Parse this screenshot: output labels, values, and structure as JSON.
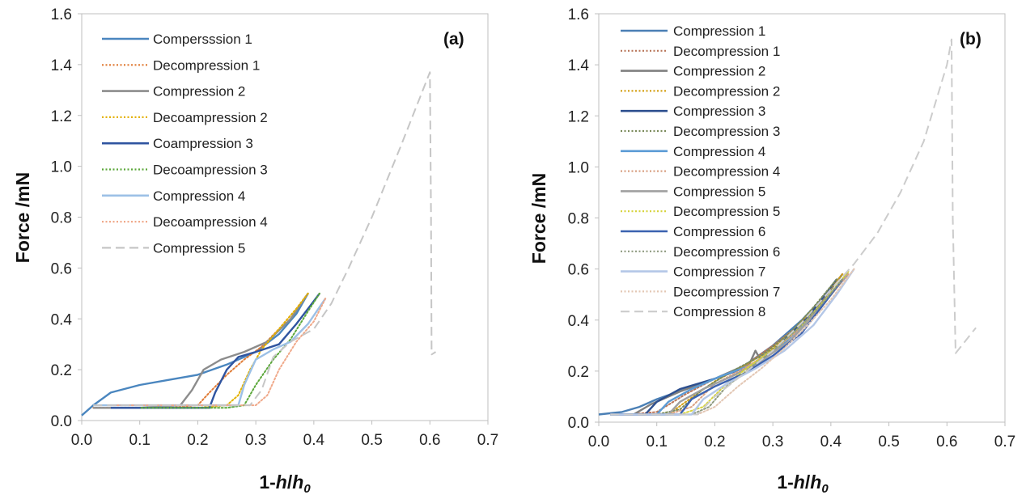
{
  "chart_data": [
    {
      "type": "line",
      "panel_label": "(a)",
      "xlabel_main": "1-",
      "xlabel_var": "h",
      "xlabel_sep": "/",
      "xlabel_var2": "h",
      "xlabel_sub": "0",
      "ylabel": "Force /mN",
      "xlim": [
        0,
        0.7
      ],
      "ylim": [
        0,
        1.6
      ],
      "xticks": [
        "0.0",
        "0.1",
        "0.2",
        "0.3",
        "0.4",
        "0.5",
        "0.6",
        "0.7"
      ],
      "yticks": [
        "0.0",
        "0.2",
        "0.4",
        "0.6",
        "0.8",
        "1.0",
        "1.2",
        "1.4",
        "1.6"
      ],
      "legend_placement": "top-left",
      "grid": false,
      "series": [
        {
          "name": "Compersssion 1",
          "color": "#4a86bf",
          "style": "solid",
          "x": [
            0.0,
            0.02,
            0.05,
            0.1,
            0.15,
            0.2,
            0.25,
            0.3,
            0.34,
            0.37,
            0.39
          ],
          "y": [
            0.02,
            0.06,
            0.11,
            0.14,
            0.16,
            0.18,
            0.22,
            0.27,
            0.34,
            0.42,
            0.5
          ]
        },
        {
          "name": "Decompression 1",
          "color": "#e07b35",
          "style": "dotted",
          "x": [
            0.39,
            0.37,
            0.34,
            0.31,
            0.28,
            0.25,
            0.22,
            0.2,
            0.15,
            0.1,
            0.05,
            0.02
          ],
          "y": [
            0.5,
            0.44,
            0.36,
            0.29,
            0.24,
            0.18,
            0.11,
            0.06,
            0.05,
            0.05,
            0.05,
            0.05
          ]
        },
        {
          "name": "Compression 2",
          "color": "#8c8c8c",
          "style": "solid",
          "x": [
            0.02,
            0.1,
            0.17,
            0.19,
            0.21,
            0.24,
            0.28,
            0.32,
            0.36,
            0.39
          ],
          "y": [
            0.05,
            0.05,
            0.06,
            0.12,
            0.2,
            0.24,
            0.27,
            0.31,
            0.4,
            0.5
          ]
        },
        {
          "name": "Decoampression 2",
          "color": "#e3b100",
          "style": "dotted",
          "x": [
            0.39,
            0.37,
            0.34,
            0.31,
            0.29,
            0.27,
            0.25,
            0.2,
            0.1
          ],
          "y": [
            0.5,
            0.44,
            0.36,
            0.28,
            0.2,
            0.1,
            0.06,
            0.05,
            0.05
          ]
        },
        {
          "name": "Coampression 3",
          "color": "#2f54a0",
          "style": "solid",
          "x": [
            0.05,
            0.15,
            0.22,
            0.23,
            0.25,
            0.27,
            0.3,
            0.34,
            0.37,
            0.39,
            0.41
          ],
          "y": [
            0.05,
            0.05,
            0.05,
            0.11,
            0.2,
            0.25,
            0.27,
            0.3,
            0.38,
            0.44,
            0.5
          ]
        },
        {
          "name": "Decoampression 3",
          "color": "#5ca83b",
          "style": "dotted",
          "x": [
            0.41,
            0.39,
            0.36,
            0.33,
            0.3,
            0.28,
            0.25,
            0.2,
            0.1
          ],
          "y": [
            0.5,
            0.43,
            0.32,
            0.24,
            0.14,
            0.06,
            0.05,
            0.05,
            0.05
          ]
        },
        {
          "name": "Compression 4",
          "color": "#9cc0e6",
          "style": "solid",
          "x": [
            0.02,
            0.1,
            0.2,
            0.27,
            0.28,
            0.3,
            0.33,
            0.36,
            0.39,
            0.42
          ],
          "y": [
            0.06,
            0.06,
            0.06,
            0.06,
            0.14,
            0.24,
            0.28,
            0.31,
            0.38,
            0.48
          ]
        },
        {
          "name": "Decoampression 4",
          "color": "#f0a98a",
          "style": "dotted",
          "x": [
            0.42,
            0.4,
            0.37,
            0.34,
            0.32,
            0.3,
            0.25,
            0.15,
            0.05
          ],
          "y": [
            0.48,
            0.39,
            0.31,
            0.2,
            0.1,
            0.06,
            0.06,
            0.06,
            0.06
          ]
        },
        {
          "name": "Compression 5",
          "color": "#c6c6c6",
          "style": "dashed",
          "x": [
            0.02,
            0.1,
            0.2,
            0.29,
            0.31,
            0.33,
            0.36,
            0.4,
            0.43,
            0.46,
            0.5,
            0.55,
            0.6,
            0.602,
            0.603,
            0.61
          ],
          "y": [
            0.06,
            0.06,
            0.06,
            0.06,
            0.12,
            0.25,
            0.31,
            0.36,
            0.46,
            0.6,
            0.8,
            1.08,
            1.37,
            0.8,
            0.26,
            0.27
          ]
        }
      ]
    },
    {
      "type": "line",
      "panel_label": "(b)",
      "xlabel_main": "1-",
      "xlabel_var": "h",
      "xlabel_sep": "/",
      "xlabel_var2": "h",
      "xlabel_sub": "0",
      "ylabel": "Force /mN",
      "xlim": [
        0,
        0.7
      ],
      "ylim": [
        0,
        1.6
      ],
      "xticks": [
        "0.0",
        "0.1",
        "0.2",
        "0.3",
        "0.4",
        "0.5",
        "0.6",
        "0.7"
      ],
      "yticks": [
        "0.0",
        "0.2",
        "0.4",
        "0.6",
        "0.8",
        "1.0",
        "1.2",
        "1.4",
        "1.6"
      ],
      "legend_placement": "top-left",
      "grid": false,
      "series": [
        {
          "name": "Compression 1",
          "color": "#4a7fb5",
          "style": "solid",
          "x": [
            0.0,
            0.04,
            0.07,
            0.1,
            0.15,
            0.2,
            0.25,
            0.3,
            0.35,
            0.4,
            0.42
          ],
          "y": [
            0.03,
            0.04,
            0.06,
            0.09,
            0.13,
            0.17,
            0.22,
            0.3,
            0.4,
            0.52,
            0.58
          ]
        },
        {
          "name": "Decompression 1",
          "color": "#b8765a",
          "style": "dotted",
          "x": [
            0.42,
            0.38,
            0.34,
            0.3,
            0.25,
            0.2,
            0.15,
            0.1,
            0.05
          ],
          "y": [
            0.58,
            0.47,
            0.37,
            0.3,
            0.22,
            0.17,
            0.11,
            0.04,
            0.03
          ]
        },
        {
          "name": "Compression 2",
          "color": "#808080",
          "style": "solid",
          "x": [
            0.02,
            0.06,
            0.09,
            0.14,
            0.2,
            0.26,
            0.27,
            0.28,
            0.32,
            0.37,
            0.42
          ],
          "y": [
            0.03,
            0.03,
            0.07,
            0.12,
            0.17,
            0.23,
            0.28,
            0.24,
            0.31,
            0.43,
            0.58
          ]
        },
        {
          "name": "Decompression 2",
          "color": "#d4a017",
          "style": "dotted",
          "x": [
            0.42,
            0.38,
            0.34,
            0.3,
            0.25,
            0.2,
            0.15,
            0.12,
            0.06
          ],
          "y": [
            0.58,
            0.47,
            0.37,
            0.29,
            0.22,
            0.16,
            0.08,
            0.03,
            0.03
          ]
        },
        {
          "name": "Compression 3",
          "color": "#2d4f8f",
          "style": "solid",
          "x": [
            0.03,
            0.08,
            0.1,
            0.14,
            0.2,
            0.26,
            0.31,
            0.36,
            0.41
          ],
          "y": [
            0.03,
            0.03,
            0.08,
            0.13,
            0.17,
            0.22,
            0.3,
            0.41,
            0.56
          ]
        },
        {
          "name": "Decompression 3",
          "color": "#7a8a5a",
          "style": "dotted",
          "x": [
            0.41,
            0.37,
            0.33,
            0.28,
            0.23,
            0.18,
            0.14,
            0.1
          ],
          "y": [
            0.56,
            0.45,
            0.35,
            0.26,
            0.2,
            0.13,
            0.05,
            0.03
          ]
        },
        {
          "name": "Compression 4",
          "color": "#5b9bd5",
          "style": "solid",
          "x": [
            0.02,
            0.1,
            0.12,
            0.16,
            0.21,
            0.27,
            0.32,
            0.37,
            0.43
          ],
          "y": [
            0.03,
            0.03,
            0.08,
            0.13,
            0.18,
            0.23,
            0.31,
            0.42,
            0.58
          ]
        },
        {
          "name": "Decompression 4",
          "color": "#d9a184",
          "style": "dotted",
          "x": [
            0.43,
            0.39,
            0.35,
            0.3,
            0.25,
            0.2,
            0.16,
            0.12
          ],
          "y": [
            0.58,
            0.47,
            0.37,
            0.28,
            0.21,
            0.15,
            0.06,
            0.03
          ]
        },
        {
          "name": "Compression 5",
          "color": "#a0a0a0",
          "style": "solid",
          "x": [
            0.02,
            0.12,
            0.14,
            0.18,
            0.23,
            0.28,
            0.33,
            0.38,
            0.43
          ],
          "y": [
            0.03,
            0.03,
            0.08,
            0.13,
            0.18,
            0.24,
            0.32,
            0.44,
            0.59
          ]
        },
        {
          "name": "Decompression 5",
          "color": "#d6d33a",
          "style": "dotted",
          "x": [
            0.43,
            0.39,
            0.35,
            0.31,
            0.26,
            0.22,
            0.18,
            0.14
          ],
          "y": [
            0.59,
            0.48,
            0.38,
            0.3,
            0.22,
            0.15,
            0.06,
            0.03
          ]
        },
        {
          "name": "Compression 6",
          "color": "#3b62b0",
          "style": "solid",
          "x": [
            0.02,
            0.14,
            0.16,
            0.2,
            0.25,
            0.3,
            0.35,
            0.4,
            0.42
          ],
          "y": [
            0.03,
            0.03,
            0.09,
            0.14,
            0.19,
            0.26,
            0.35,
            0.5,
            0.56
          ]
        },
        {
          "name": "Decompression 6",
          "color": "#8f9b80",
          "style": "dotted",
          "x": [
            0.42,
            0.38,
            0.34,
            0.3,
            0.26,
            0.22,
            0.19,
            0.16
          ],
          "y": [
            0.56,
            0.45,
            0.36,
            0.28,
            0.21,
            0.14,
            0.06,
            0.03
          ]
        },
        {
          "name": "Compression 7",
          "color": "#b4c7e7",
          "style": "solid",
          "x": [
            0.02,
            0.16,
            0.18,
            0.22,
            0.27,
            0.32,
            0.37,
            0.41,
            0.44
          ],
          "y": [
            0.03,
            0.03,
            0.09,
            0.15,
            0.21,
            0.28,
            0.38,
            0.5,
            0.6
          ]
        },
        {
          "name": "Decompression 7",
          "color": "#e3c7b4",
          "style": "dotted",
          "x": [
            0.44,
            0.4,
            0.36,
            0.32,
            0.28,
            0.24,
            0.2,
            0.17
          ],
          "y": [
            0.6,
            0.48,
            0.38,
            0.29,
            0.21,
            0.14,
            0.06,
            0.03
          ]
        },
        {
          "name": "Compression 8",
          "color": "#cccccc",
          "style": "dashed",
          "x": [
            0.02,
            0.17,
            0.2,
            0.25,
            0.3,
            0.35,
            0.4,
            0.44,
            0.48,
            0.52,
            0.56,
            0.6,
            0.608,
            0.61,
            0.615,
            0.65
          ],
          "y": [
            0.03,
            0.03,
            0.1,
            0.19,
            0.28,
            0.39,
            0.52,
            0.62,
            0.74,
            0.9,
            1.1,
            1.4,
            1.5,
            0.8,
            0.27,
            0.37
          ]
        }
      ]
    }
  ]
}
